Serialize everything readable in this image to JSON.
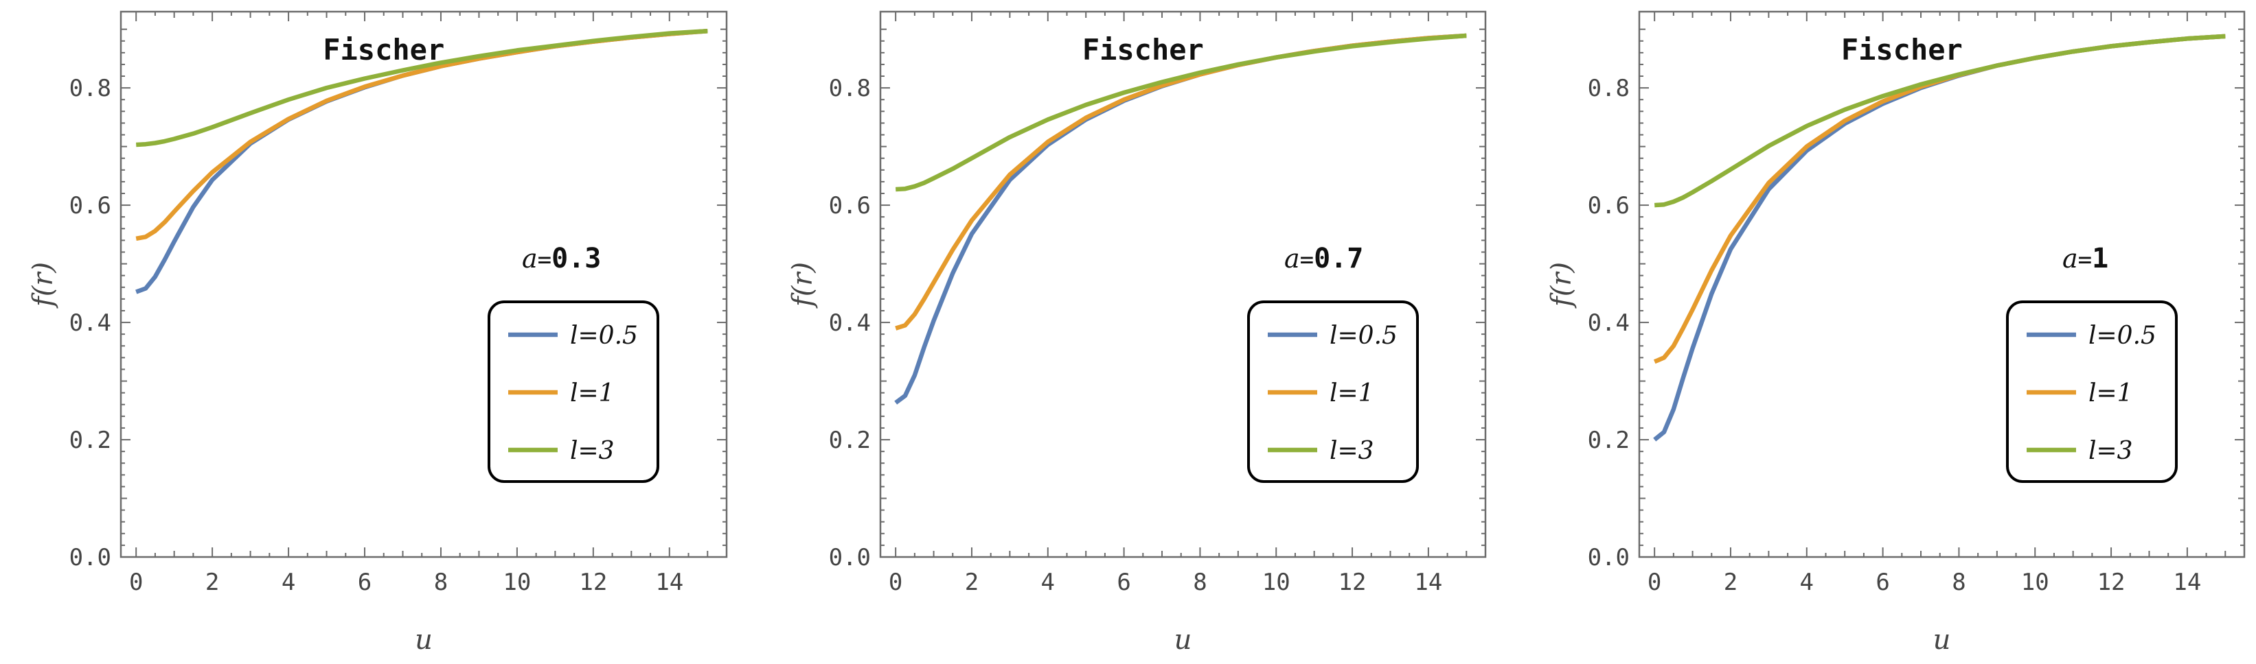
{
  "colors": {
    "l_0_5": "#5b7fb5",
    "l_1": "#e59b2c",
    "l_3": "#8fb03a",
    "axis": "#6b6b6b",
    "text": "#444444",
    "background": "#ffffff"
  },
  "chart_data": [
    {
      "type": "line",
      "title": "Fischer",
      "xlabel": "u",
      "ylabel": "f(r)",
      "xlim": [
        -0.4,
        15.5
      ],
      "ylim": [
        0.0,
        0.93
      ],
      "xticks": [
        "0",
        "2",
        "4",
        "6",
        "8",
        "10",
        "12",
        "14"
      ],
      "yticks": [
        "0.0",
        "0.2",
        "0.4",
        "0.6",
        "0.8"
      ],
      "annotation": {
        "a_symbol": "a",
        "equals": "=",
        "value": "0.3"
      },
      "legend": {
        "placement": "center-right",
        "entries": [
          "l=0.5",
          "l=1",
          "l=3"
        ]
      },
      "x": [
        0,
        0.25,
        0.5,
        0.75,
        1,
        1.5,
        2,
        3,
        4,
        5,
        6,
        7,
        8,
        9,
        10,
        11,
        12,
        13,
        14,
        15
      ],
      "series": [
        {
          "name": "l=0.5",
          "values": [
            0.452,
            0.458,
            0.478,
            0.507,
            0.538,
            0.597,
            0.643,
            0.705,
            0.746,
            0.777,
            0.801,
            0.821,
            0.837,
            0.85,
            0.861,
            0.871,
            0.879,
            0.886,
            0.892,
            0.897
          ]
        },
        {
          "name": "l=1",
          "values": [
            0.543,
            0.546,
            0.556,
            0.571,
            0.589,
            0.624,
            0.656,
            0.708,
            0.747,
            0.778,
            0.802,
            0.821,
            0.837,
            0.85,
            0.861,
            0.871,
            0.879,
            0.886,
            0.892,
            0.897
          ]
        },
        {
          "name": "l=3",
          "values": [
            0.703,
            0.704,
            0.706,
            0.709,
            0.713,
            0.722,
            0.733,
            0.757,
            0.78,
            0.8,
            0.816,
            0.83,
            0.843,
            0.854,
            0.864,
            0.872,
            0.88,
            0.887,
            0.893,
            0.897
          ]
        }
      ]
    },
    {
      "type": "line",
      "title": "Fischer",
      "xlabel": "u",
      "ylabel": "f(r)",
      "xlim": [
        -0.4,
        15.5
      ],
      "ylim": [
        0.0,
        0.93
      ],
      "xticks": [
        "0",
        "2",
        "4",
        "6",
        "8",
        "10",
        "12",
        "14"
      ],
      "yticks": [
        "0.0",
        "0.2",
        "0.4",
        "0.6",
        "0.8"
      ],
      "annotation": {
        "a_symbol": "a",
        "equals": "=",
        "value": "0.7"
      },
      "legend": {
        "placement": "center-right",
        "entries": [
          "l=0.5",
          "l=1",
          "l=3"
        ]
      },
      "x": [
        0,
        0.25,
        0.5,
        0.75,
        1,
        1.5,
        2,
        3,
        4,
        5,
        6,
        7,
        8,
        9,
        10,
        11,
        12,
        13,
        14,
        15
      ],
      "series": [
        {
          "name": "l=0.5",
          "values": [
            0.263,
            0.275,
            0.31,
            0.358,
            0.403,
            0.484,
            0.551,
            0.643,
            0.703,
            0.746,
            0.778,
            0.803,
            0.823,
            0.839,
            0.852,
            0.863,
            0.872,
            0.879,
            0.885,
            0.889
          ]
        },
        {
          "name": "l=1",
          "values": [
            0.39,
            0.395,
            0.414,
            0.44,
            0.468,
            0.524,
            0.574,
            0.652,
            0.708,
            0.749,
            0.78,
            0.804,
            0.823,
            0.839,
            0.852,
            0.863,
            0.872,
            0.879,
            0.885,
            0.889
          ]
        },
        {
          "name": "l=3",
          "values": [
            0.627,
            0.628,
            0.632,
            0.638,
            0.646,
            0.662,
            0.68,
            0.716,
            0.746,
            0.771,
            0.792,
            0.81,
            0.826,
            0.84,
            0.852,
            0.862,
            0.871,
            0.878,
            0.884,
            0.889
          ]
        }
      ]
    },
    {
      "type": "line",
      "title": "Fischer",
      "xlabel": "u",
      "ylabel": "f(r)",
      "xlim": [
        -0.4,
        15.5
      ],
      "ylim": [
        0.0,
        0.93
      ],
      "xticks": [
        "0",
        "2",
        "4",
        "6",
        "8",
        "10",
        "12",
        "14"
      ],
      "yticks": [
        "0.0",
        "0.2",
        "0.4",
        "0.6",
        "0.8"
      ],
      "annotation": {
        "a_symbol": "a",
        "equals": "=",
        "value": "1"
      },
      "legend": {
        "placement": "center-right",
        "entries": [
          "l=0.5",
          "l=1",
          "l=3"
        ]
      },
      "x": [
        0,
        0.25,
        0.5,
        0.75,
        1,
        1.5,
        2,
        3,
        4,
        5,
        6,
        7,
        8,
        9,
        10,
        11,
        12,
        13,
        14,
        15
      ],
      "series": [
        {
          "name": "l=0.5",
          "values": [
            0.2,
            0.213,
            0.252,
            0.305,
            0.356,
            0.449,
            0.525,
            0.627,
            0.693,
            0.739,
            0.773,
            0.8,
            0.821,
            0.838,
            0.851,
            0.862,
            0.871,
            0.878,
            0.884,
            0.888
          ]
        },
        {
          "name": "l=1",
          "values": [
            0.333,
            0.34,
            0.36,
            0.39,
            0.422,
            0.489,
            0.548,
            0.638,
            0.7,
            0.744,
            0.777,
            0.802,
            0.822,
            0.838,
            0.851,
            0.862,
            0.871,
            0.878,
            0.884,
            0.888
          ]
        },
        {
          "name": "l=3",
          "values": [
            0.6,
            0.601,
            0.606,
            0.613,
            0.622,
            0.641,
            0.661,
            0.701,
            0.735,
            0.763,
            0.786,
            0.806,
            0.823,
            0.838,
            0.851,
            0.862,
            0.871,
            0.878,
            0.884,
            0.888
          ]
        }
      ]
    }
  ]
}
